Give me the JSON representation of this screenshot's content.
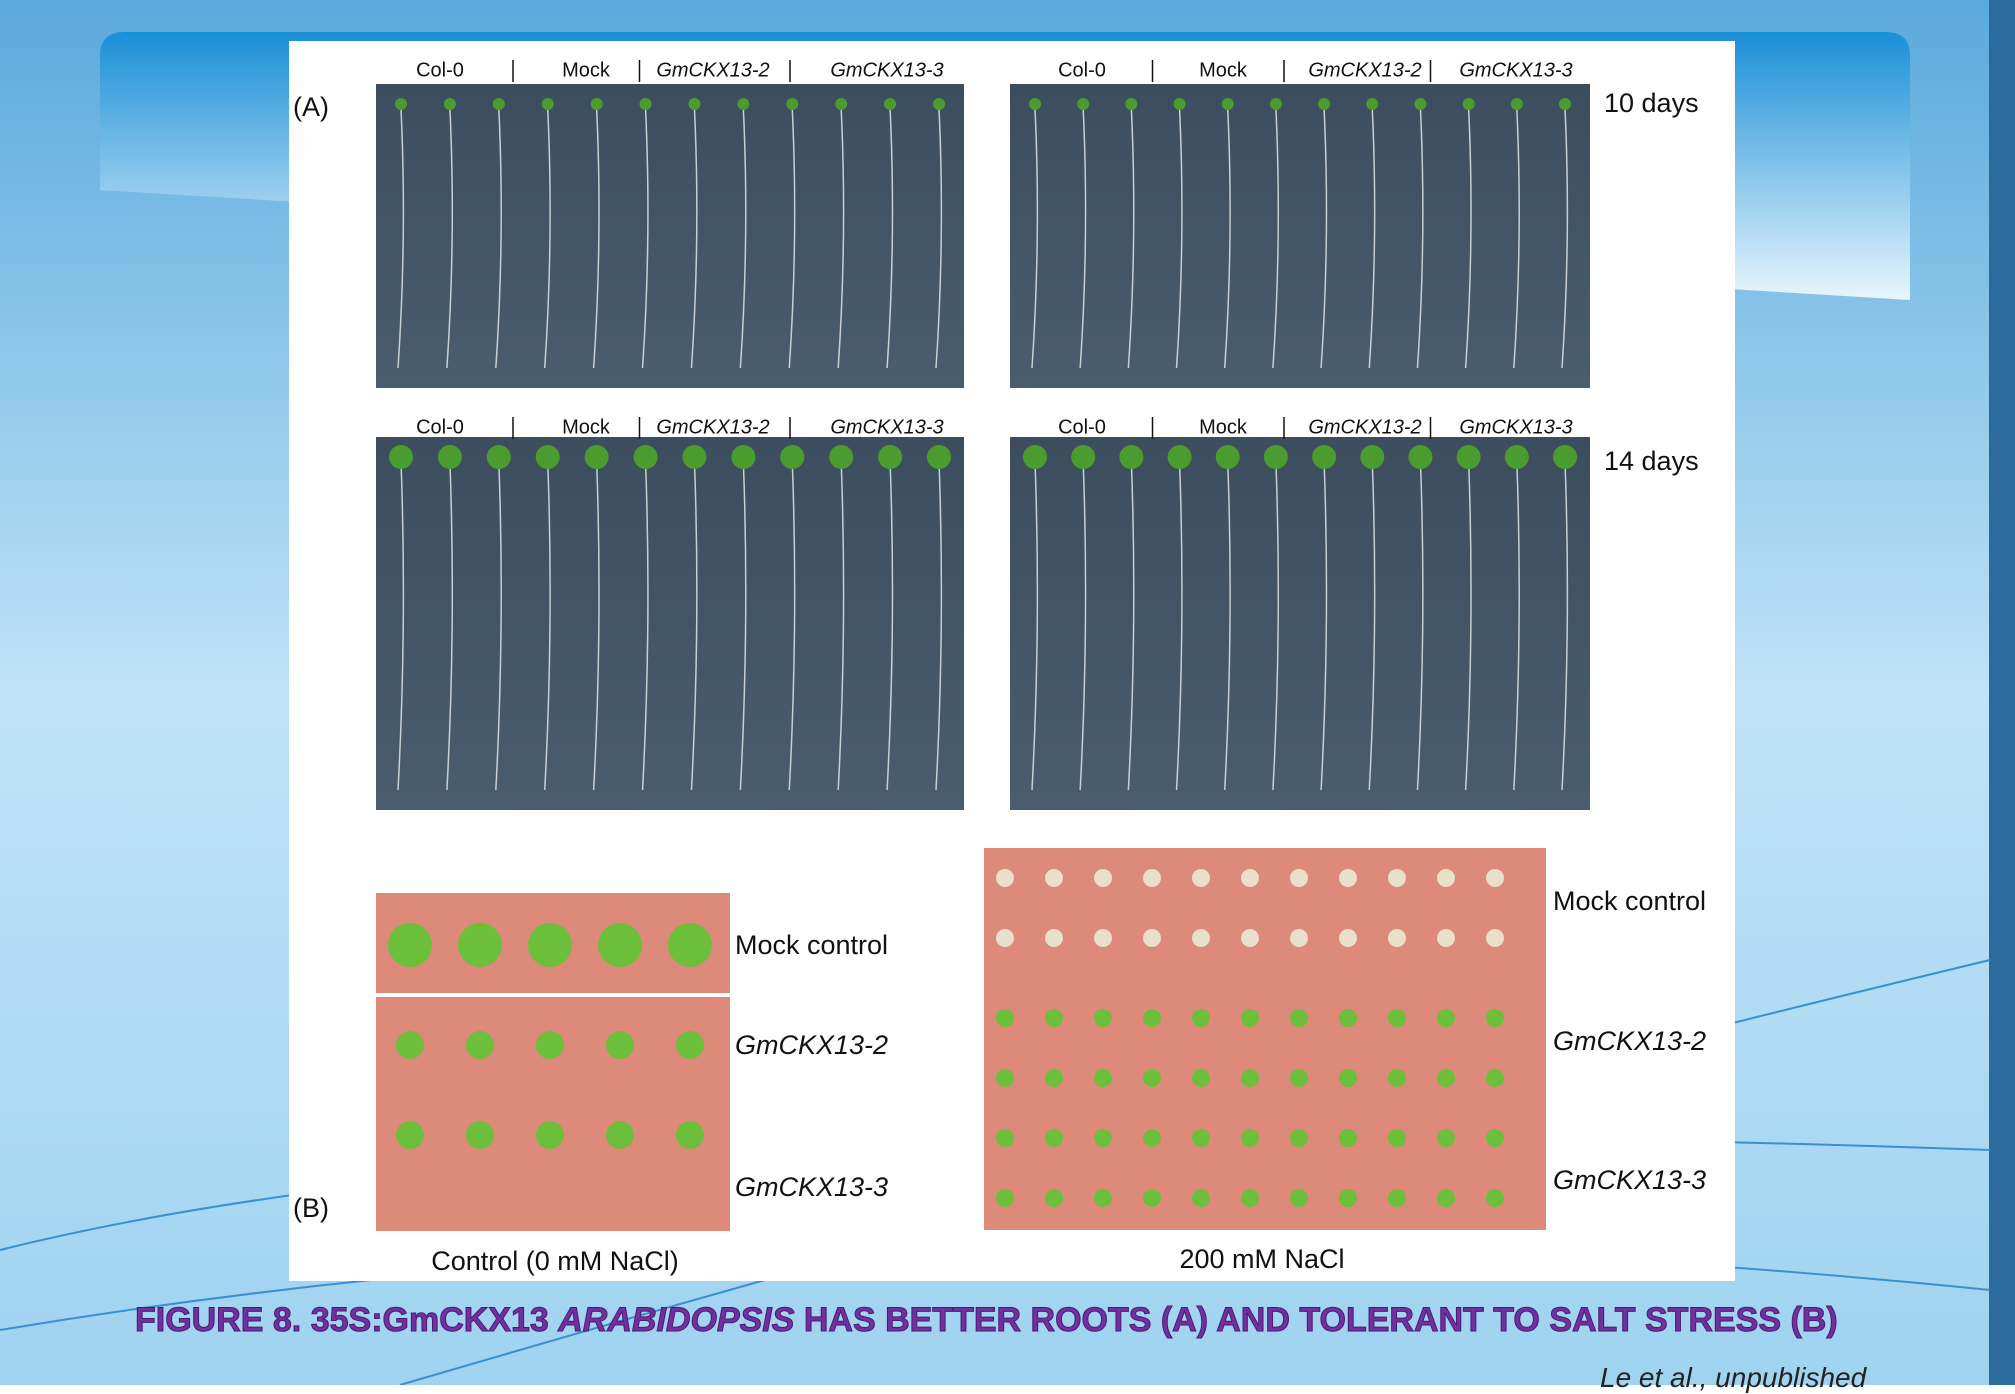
{
  "figure": {
    "panel_a": {
      "label": "(A)",
      "groups": [
        "Col-0",
        "Mock",
        "GmCKX13-2",
        "GmCKX13-3"
      ],
      "times": [
        "10 days",
        "14 days"
      ]
    },
    "panel_b": {
      "label": "(B)",
      "rows": [
        "Mock control",
        "GmCKX13-2",
        "GmCKX13-3"
      ],
      "conditions": [
        "Control (0 mM NaCl)",
        "200 mM NaCl"
      ]
    }
  },
  "caption": {
    "before": "FIGURE 8. 35S:GmCKX13 ",
    "italic": "ARABIDOPSIS",
    "after": " HAS BETTER ROOTS (A) AND TOLERANT TO SALT STRESS (B)"
  },
  "citation": "Le et al., unpublished"
}
